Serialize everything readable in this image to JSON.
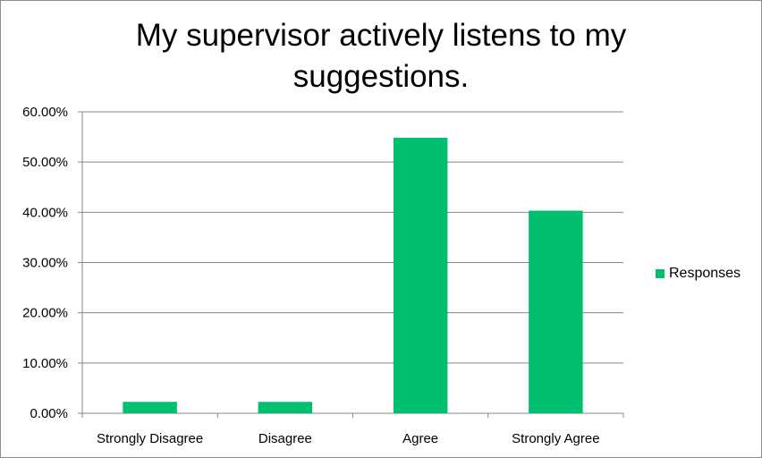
{
  "chart_data": {
    "type": "bar",
    "title": "My supervisor actively listens to my suggestions.",
    "categories": [
      "Strongly Disagree",
      "Disagree",
      "Agree",
      "Strongly Agree"
    ],
    "series": [
      {
        "name": "Responses",
        "values": [
          0.0227,
          0.0227,
          0.5484,
          0.4032
        ],
        "color": "#00bf6f"
      }
    ],
    "ylim": [
      0,
      0.6
    ],
    "yticks": [
      0,
      0.1,
      0.2,
      0.3,
      0.4,
      0.5,
      0.6
    ],
    "ytick_labels": [
      "0.00%",
      "10.00%",
      "20.00%",
      "30.00%",
      "40.00%",
      "50.00%",
      "60.00%"
    ],
    "grid": true,
    "legend": "right"
  }
}
